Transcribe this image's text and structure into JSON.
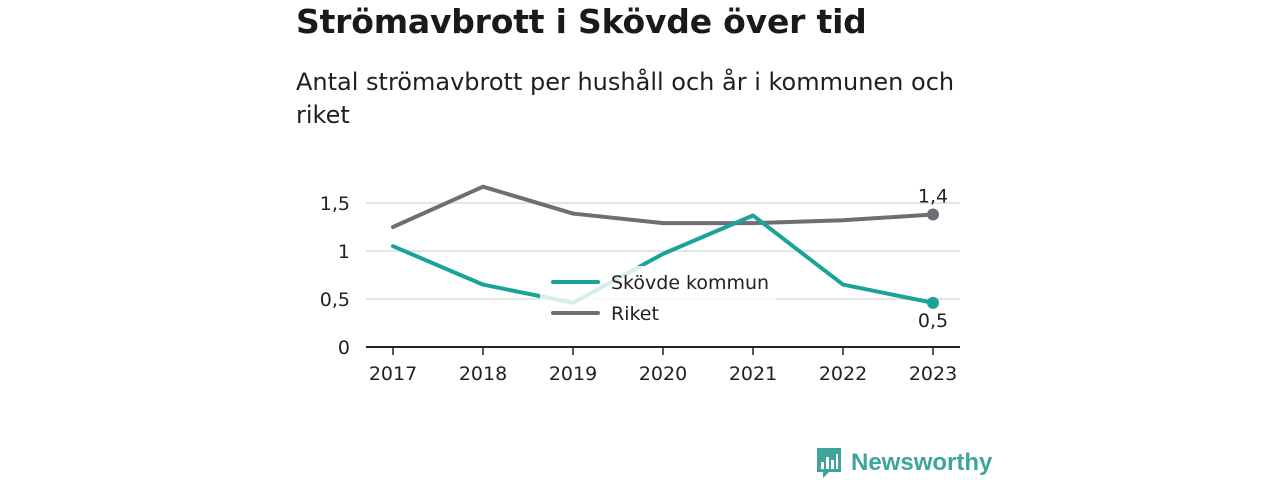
{
  "title": "Strömavbrott i Skövde över tid",
  "subtitle": "Antal strömavbrott per hushåll och år i kommunen och riket",
  "brand": "Newsworthy",
  "colors": {
    "skovde": "#1aa397",
    "riket": "#6f6e76",
    "grid": "#dcdcdc",
    "axis": "#222222",
    "brand": "#3fa49c"
  },
  "chart_data": {
    "type": "line",
    "categories": [
      "2017",
      "2018",
      "2019",
      "2020",
      "2021",
      "2022",
      "2023"
    ],
    "series": [
      {
        "name": "Skövde kommun",
        "values": [
          1.05,
          0.65,
          0.46,
          0.97,
          1.37,
          0.65,
          0.46
        ],
        "end_label": "0,5"
      },
      {
        "name": "Riket",
        "values": [
          1.25,
          1.67,
          1.39,
          1.29,
          1.29,
          1.32,
          1.38
        ],
        "end_label": "1,4"
      }
    ],
    "yticks": [
      "0",
      "0,5",
      "1",
      "1,5"
    ],
    "ytick_values": [
      0,
      0.5,
      1,
      1.5
    ],
    "ylim": [
      0,
      1.5
    ],
    "grid": true,
    "legend": "center-bottom"
  }
}
